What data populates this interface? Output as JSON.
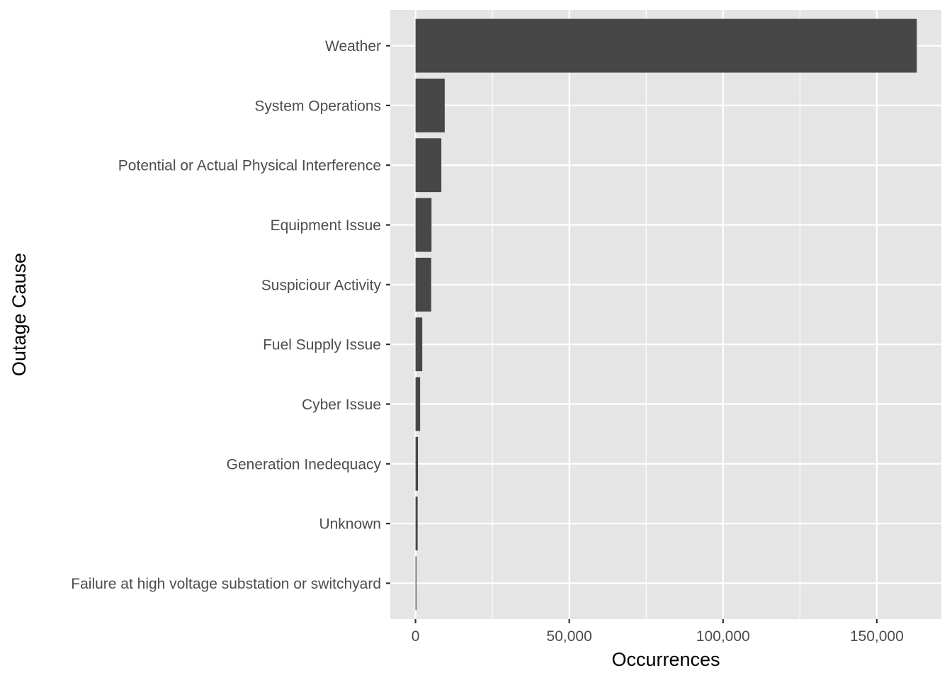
{
  "chart_data": {
    "type": "bar",
    "orientation": "horizontal",
    "xlabel": "Occurrences",
    "ylabel": "Outage Cause",
    "categories": [
      "Weather",
      "System Operations",
      "Potential or Actual Physical Interference",
      "Equipment Issue",
      "Suspiciour Activity",
      "Fuel Supply Issue",
      "Cyber Issue",
      "Generation Inedequacy",
      "Unknown",
      "Failure at high voltage substation or switchyard"
    ],
    "values": [
      163000,
      9500,
      8400,
      5200,
      5100,
      2200,
      1500,
      800,
      700,
      300
    ],
    "xlim": [
      -8200,
      171000
    ],
    "xticks": [
      0,
      50000,
      100000,
      150000
    ],
    "xtick_labels": [
      "0",
      "50,000",
      "100,000",
      "150,000"
    ],
    "grid": true,
    "colors": {
      "bar": "#474747",
      "panel": "#e5e5e5",
      "grid": "#ffffff",
      "tick_text": "#4d4d4d",
      "title_text": "#000000"
    }
  }
}
